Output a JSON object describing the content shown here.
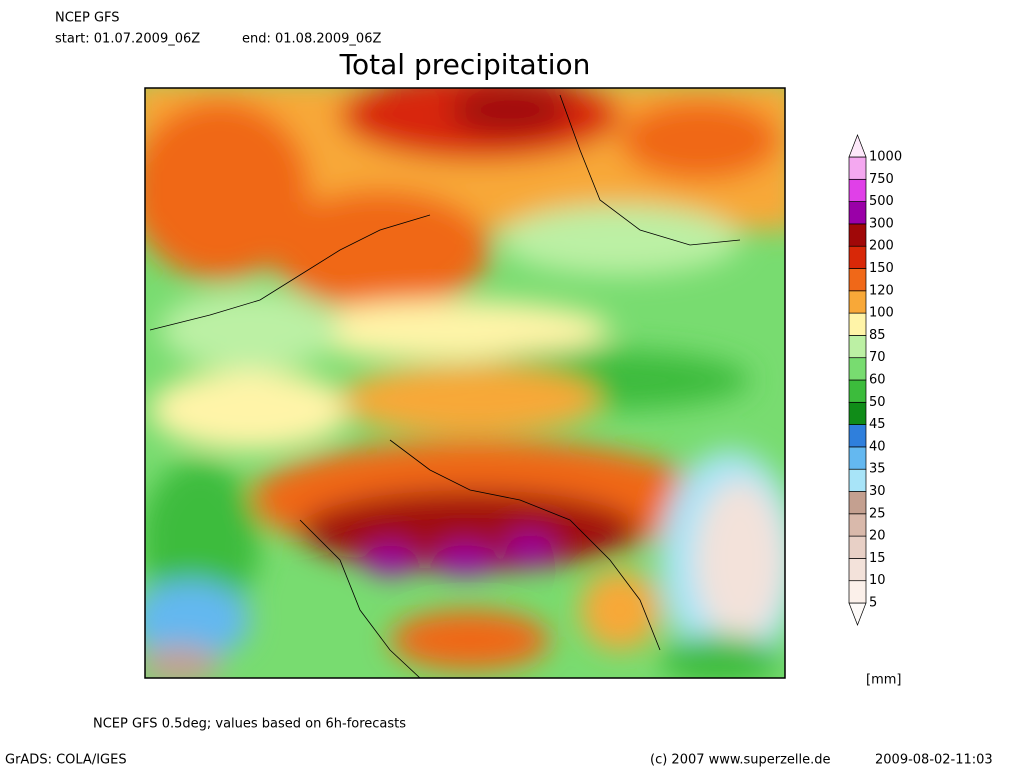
{
  "header": {
    "model": "NCEP GFS",
    "start": "start: 01.07.2009_06Z",
    "end": "end: 01.08.2009_06Z",
    "title": "Total precipitation"
  },
  "legend": {
    "levels": [
      5,
      10,
      15,
      20,
      25,
      30,
      35,
      40,
      45,
      50,
      60,
      70,
      85,
      100,
      120,
      150,
      200,
      300,
      500,
      750,
      1000
    ],
    "colors": [
      "#fdfaf8",
      "#fbf0ea",
      "#f3e2da",
      "#e8d0c6",
      "#d9b9ab",
      "#c4a090",
      "#a8e4f8",
      "#64b8f0",
      "#2f7fdc",
      "#108c18",
      "#3cbc3c",
      "#78dc70",
      "#bcf0a4",
      "#fff4a8",
      "#f8a838",
      "#f06818",
      "#d82808",
      "#a00808",
      "#9a00a8",
      "#e040e8",
      "#f4a8f0",
      "#fde8fa"
    ],
    "unit": "[mm]"
  },
  "footer": {
    "note": "NCEP GFS 0.5deg; values based on 6h-forecasts",
    "software": "GrADS: COLA/IGES",
    "copyright": "(c) 2007 www.superzelle.de",
    "timestamp": "2009-08-02-11:03"
  }
}
